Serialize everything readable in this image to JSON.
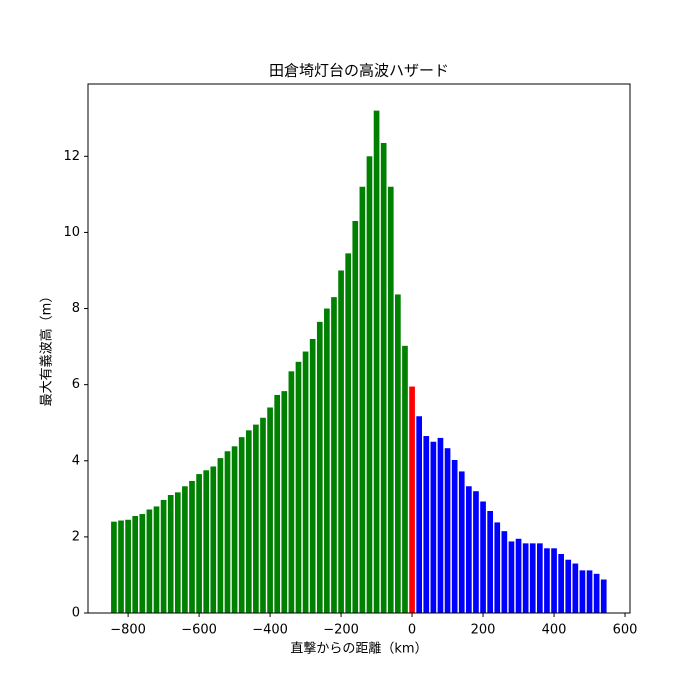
{
  "chart_data": {
    "type": "bar",
    "title": "田倉埼灯台の高波ハザード",
    "x_label": "直撃からの距離（km）",
    "y_label": "最大有義波高（m）",
    "series": [
      {
        "color": "#008000",
        "x": [
          -840,
          -820,
          -800,
          -780,
          -760,
          -740,
          -720,
          -700,
          -680,
          -660,
          -640,
          -620,
          -600,
          -580,
          -560,
          -540,
          -520,
          -500,
          -480,
          -460,
          -440,
          -420,
          -400,
          -380,
          -360,
          -340,
          -320,
          -300,
          -280,
          -260,
          -240,
          -220,
          -200,
          -180,
          -160,
          -140,
          -120,
          -100,
          -80,
          -60,
          -40,
          -20
        ],
        "values": [
          2.4,
          2.43,
          2.45,
          2.55,
          2.6,
          2.72,
          2.8,
          2.97,
          3.1,
          3.17,
          3.33,
          3.47,
          3.65,
          3.75,
          3.85,
          4.07,
          4.25,
          4.38,
          4.62,
          4.8,
          4.95,
          5.13,
          5.4,
          5.73,
          5.83,
          6.35,
          6.6,
          6.87,
          7.2,
          7.65,
          8.0,
          8.3,
          9.0,
          9.45,
          10.3,
          11.2,
          12.0,
          13.2,
          12.35,
          11.2,
          8.37,
          7.02
        ]
      },
      {
        "color": "#ff0000",
        "x": [
          0
        ],
        "values": [
          5.95
        ]
      },
      {
        "color": "#0000ff",
        "x": [
          20,
          40,
          60,
          80,
          100,
          120,
          140,
          160,
          180,
          200,
          220,
          240,
          260,
          280,
          300,
          320,
          340,
          360,
          380,
          400,
          420,
          440,
          460,
          480,
          500,
          520,
          540
        ],
        "values": [
          5.17,
          4.65,
          4.5,
          4.6,
          4.33,
          4.02,
          3.72,
          3.33,
          3.2,
          2.93,
          2.68,
          2.38,
          2.15,
          1.88,
          1.95,
          1.83,
          1.83,
          1.83,
          1.7,
          1.7,
          1.55,
          1.4,
          1.3,
          1.12,
          1.12,
          1.03,
          0.88
        ]
      }
    ],
    "xlim": [
      -913,
      614
    ],
    "ylim": [
      0,
      13.9
    ],
    "xticks": [
      {
        "value": -800,
        "label": "−800"
      },
      {
        "value": -600,
        "label": "−600"
      },
      {
        "value": -400,
        "label": "−400"
      },
      {
        "value": -200,
        "label": "−200"
      },
      0,
      200,
      400,
      600
    ],
    "yticks": [
      0,
      2,
      4,
      6,
      8,
      10,
      12
    ]
  }
}
